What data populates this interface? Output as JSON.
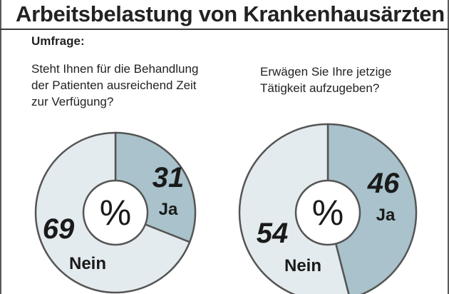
{
  "title": "Arbeitsbelastung von Krankenhausärzten",
  "subtitle": "Umfrage:",
  "unit_symbol": "%",
  "colors": {
    "ja": "#a9c2cb",
    "nein": "#e4ebee",
    "stroke": "#555555",
    "center": "#ffffff",
    "text": "#1a1a1a"
  },
  "chart_data": [
    {
      "type": "pie",
      "question": "Steht Ihnen für die Behandlung\nder Patienten ausreichend Zeit\nzur Verfügung?",
      "slices": [
        {
          "label": "Ja",
          "value": 31
        },
        {
          "label": "Nein",
          "value": 69
        }
      ]
    },
    {
      "type": "pie",
      "question": "Erwägen Sie Ihre jetzige\nTätigkeit aufzugeben?",
      "slices": [
        {
          "label": "Ja",
          "value": 46
        },
        {
          "label": "Nein",
          "value": 54
        }
      ]
    }
  ]
}
